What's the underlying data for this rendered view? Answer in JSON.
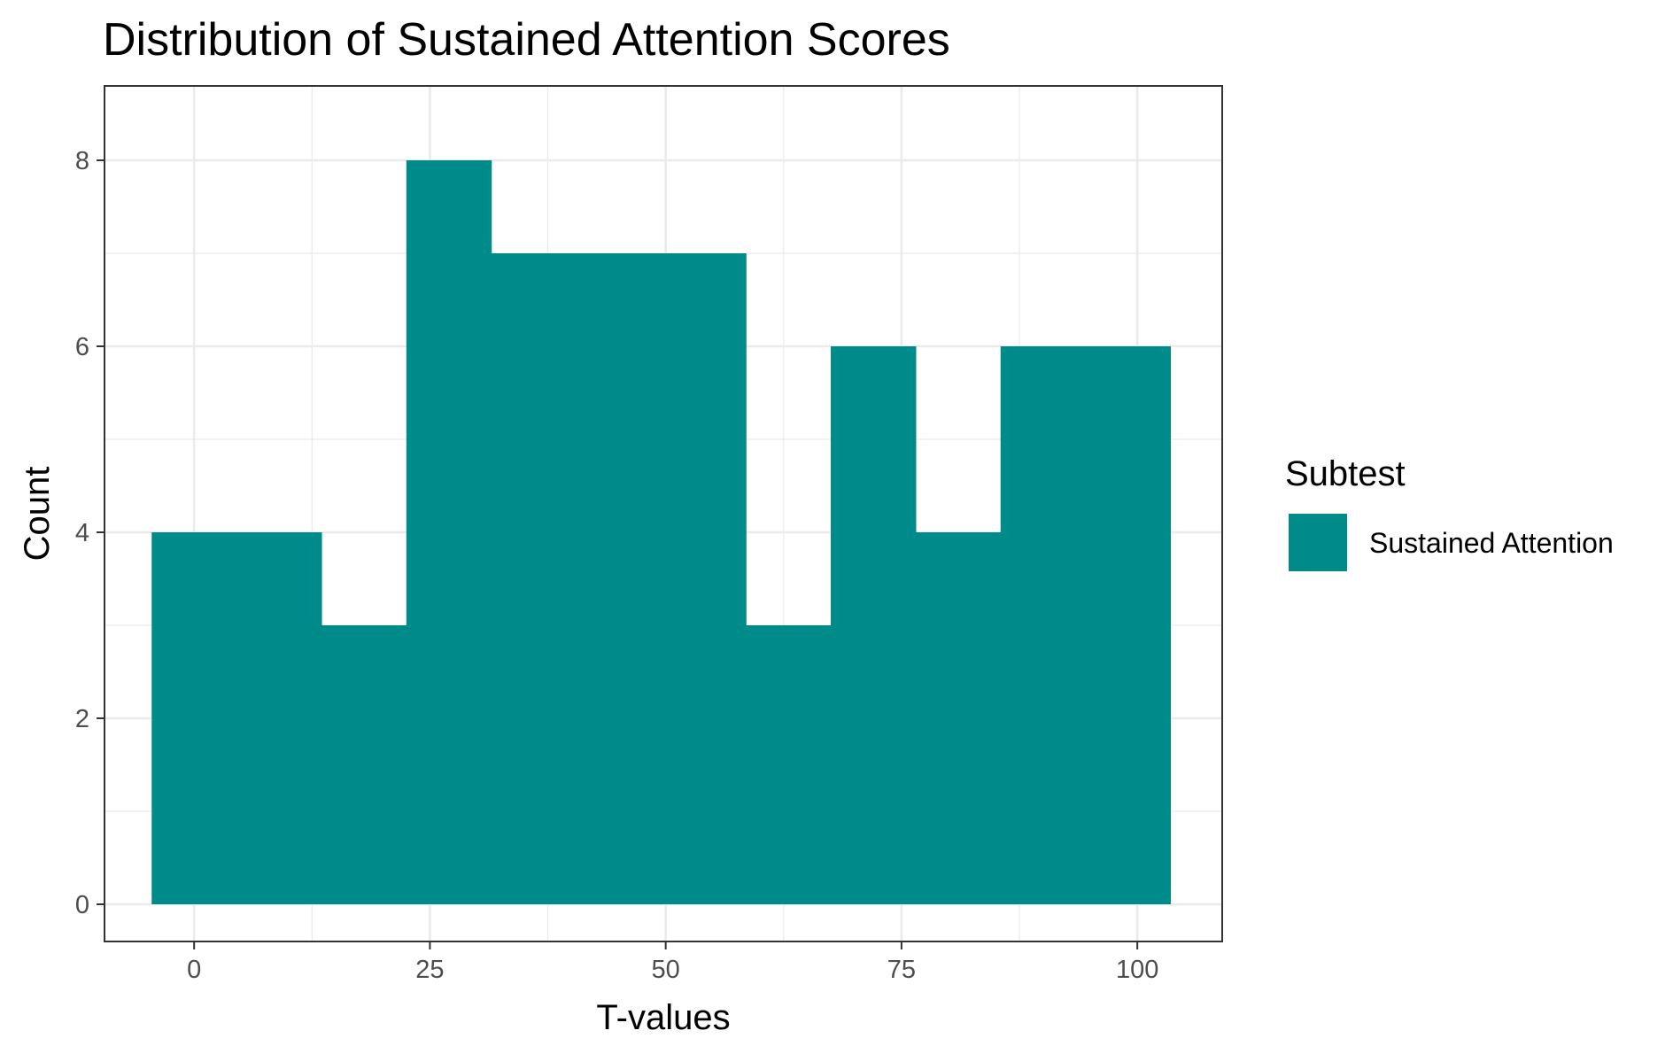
{
  "chart_data": {
    "type": "bar",
    "subtype": "histogram",
    "title": "Distribution of Sustained Attention Scores",
    "xlabel": "T-values",
    "ylabel": "Count",
    "xlim": [
      -9.5,
      109
    ],
    "ylim": [
      -0.4,
      8.8
    ],
    "x_ticks": [
      0,
      25,
      50,
      75,
      100
    ],
    "y_ticks": [
      0,
      2,
      4,
      6,
      8
    ],
    "x_minor_ticks": [
      12.5,
      37.5,
      62.5,
      87.5
    ],
    "y_minor_ticks": [
      1,
      3,
      5,
      7
    ],
    "grid": true,
    "bin_width": 9,
    "bins": [
      {
        "x0": -4.5,
        "x1": 4.5,
        "count": 4
      },
      {
        "x0": 4.5,
        "x1": 13.5,
        "count": 4
      },
      {
        "x0": 13.5,
        "x1": 22.5,
        "count": 3
      },
      {
        "x0": 22.5,
        "x1": 31.5,
        "count": 8
      },
      {
        "x0": 31.5,
        "x1": 40.5,
        "count": 7
      },
      {
        "x0": 40.5,
        "x1": 49.5,
        "count": 7
      },
      {
        "x0": 49.5,
        "x1": 58.5,
        "count": 7
      },
      {
        "x0": 58.5,
        "x1": 67.5,
        "count": 3
      },
      {
        "x0": 67.5,
        "x1": 76.5,
        "count": 6
      },
      {
        "x0": 76.5,
        "x1": 85.5,
        "count": 4
      },
      {
        "x0": 85.5,
        "x1": 94.5,
        "count": 6
      },
      {
        "x0": 94.5,
        "x1": 103.5,
        "count": 6
      }
    ],
    "series": [
      {
        "name": "Sustained Attention",
        "color": "#008b8b"
      }
    ],
    "legend": {
      "title": "Subtest",
      "placement": "right"
    },
    "panel_border_color": "#333333",
    "grid_color": "#ebebeb"
  }
}
